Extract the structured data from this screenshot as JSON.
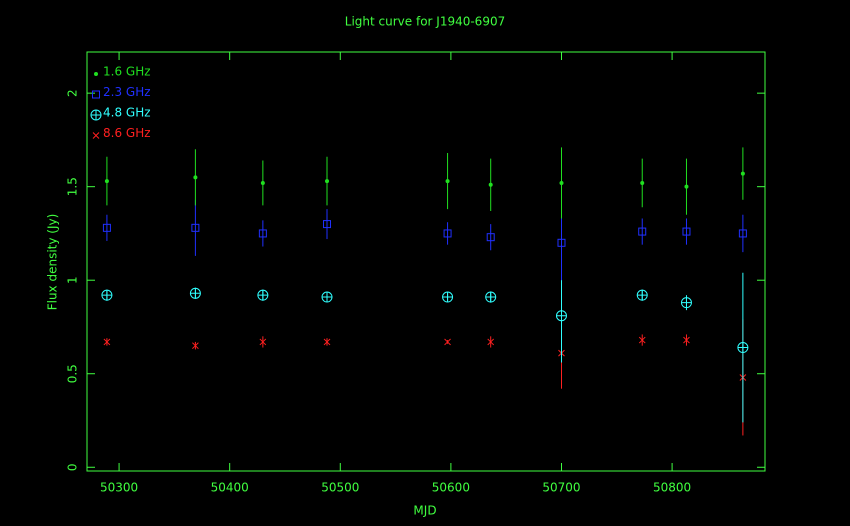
{
  "chart_data": {
    "type": "errorbar_scatter",
    "title": "Light curve for J1940-6907",
    "x_label": "MJD",
    "y_label": "Flux density (Jy)",
    "x": [
      50289,
      50369,
      50430,
      50488,
      50597,
      50636,
      50700,
      50773,
      50813,
      50864
    ],
    "series": [
      {
        "name": "8.6 GHz",
        "color": "#ff2020",
        "marker": "cross",
        "values": [
          0.67,
          0.65,
          0.67,
          0.67,
          0.67,
          0.67,
          0.61,
          0.68,
          0.68,
          0.48
        ],
        "errors": [
          0.02,
          0.02,
          0.03,
          0.02,
          0.01,
          0.03,
          0.19,
          0.03,
          0.03,
          0.31
        ]
      },
      {
        "name": "4.8 GHz",
        "color": "#30ffff",
        "marker": "circle-plus",
        "values": [
          0.92,
          0.93,
          0.92,
          0.91,
          0.91,
          0.91,
          0.81,
          0.92,
          0.88,
          0.64
        ],
        "errors": [
          0.03,
          0.03,
          0.03,
          0.02,
          0.02,
          0.03,
          0.25,
          0.03,
          0.04,
          0.4
        ]
      },
      {
        "name": "2.3 GHz",
        "color": "#2030ff",
        "marker": "square",
        "values": [
          1.28,
          1.28,
          1.25,
          1.3,
          1.25,
          1.23,
          1.2,
          1.26,
          1.26,
          1.25
        ],
        "errors": [
          0.07,
          0.15,
          0.07,
          0.08,
          0.06,
          0.07,
          0.2,
          0.07,
          0.07,
          0.1
        ]
      },
      {
        "name": "1.6 GHz",
        "color": "#20e020",
        "marker": "dot",
        "values": [
          1.53,
          1.55,
          1.52,
          1.53,
          1.53,
          1.51,
          1.52,
          1.52,
          1.5,
          1.57
        ],
        "errors": [
          0.13,
          0.15,
          0.12,
          0.13,
          0.15,
          0.14,
          0.19,
          0.13,
          0.15,
          0.14
        ]
      }
    ],
    "xlim": [
      50271,
      50884
    ],
    "ylim": [
      -0.02,
      2.22
    ],
    "xticks": [
      50300,
      50400,
      50500,
      50600,
      50700,
      50800
    ],
    "yticks": [
      0,
      0.5,
      1,
      1.5,
      2
    ],
    "axis_color": "#40ff40",
    "legend": "upper left"
  }
}
